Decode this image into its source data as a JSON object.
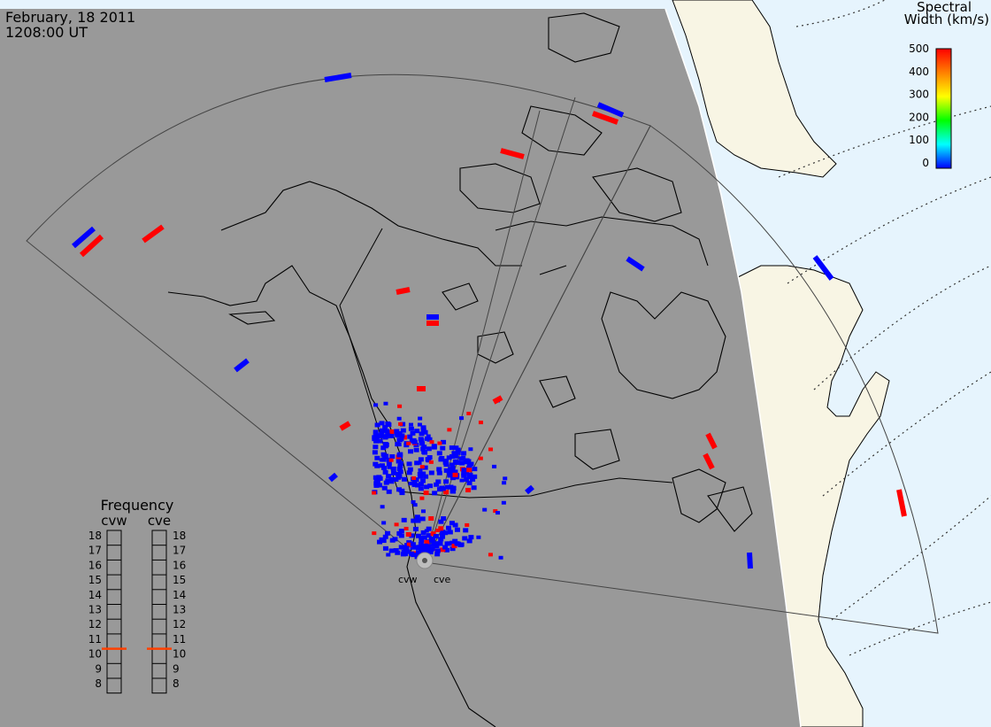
{
  "header": {
    "date": "February, 18 2011",
    "time": "1208:00 UT"
  },
  "colorbar": {
    "title_line1": "Spectral",
    "title_line2": "Width (km/s)",
    "ticks": [
      "500",
      "400",
      "300",
      "200",
      "100",
      "0"
    ],
    "colors": [
      "#ff0000",
      "#ff8000",
      "#ffff00",
      "#00ff00",
      "#00ffff",
      "#0000ff"
    ]
  },
  "frequency": {
    "title": "Frequency",
    "left_label": "cvw",
    "right_label": "cve",
    "ticks": [
      "18",
      "17",
      "16",
      "15",
      "14",
      "13",
      "12",
      "11",
      "10",
      "9",
      "8"
    ],
    "cvw_mhz": 10.5,
    "cve_mhz": 10.5,
    "marker_color": "#ff4000"
  },
  "radars": {
    "west_label": "cvw",
    "east_label": "cve"
  },
  "map": {
    "night_color": "#999999",
    "day_land_color": "#f8f5e4",
    "day_ocean_color": "#e6f4fd",
    "echo_low_color": "#0000ff",
    "echo_high_color": "#ff0000"
  }
}
